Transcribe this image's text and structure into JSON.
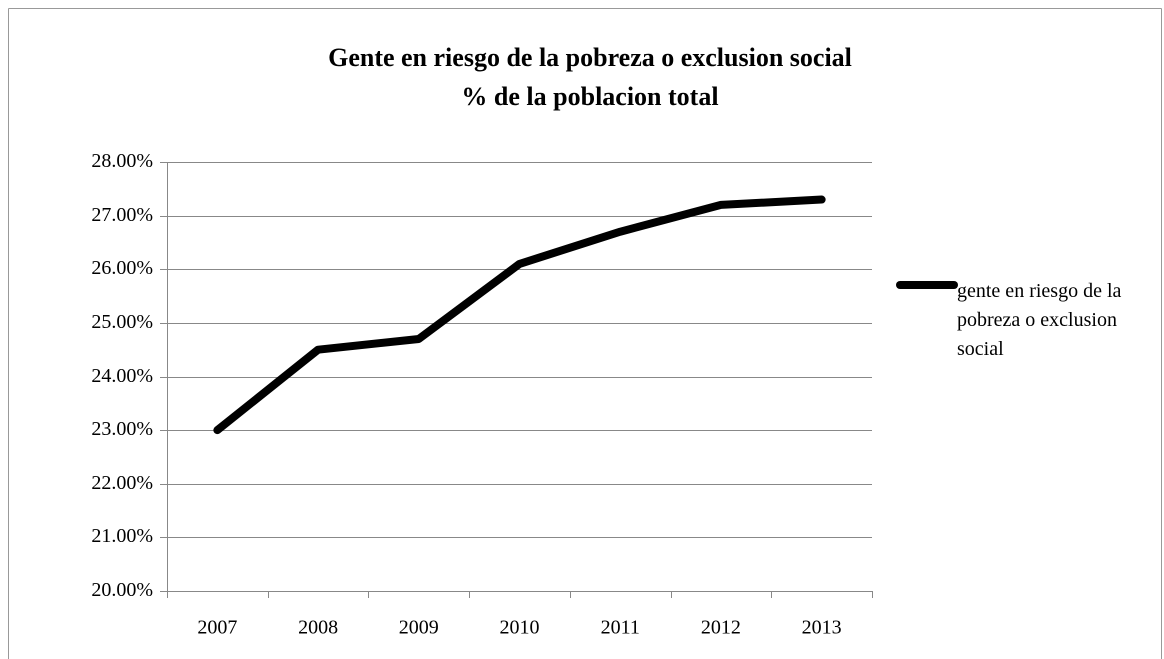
{
  "chart_data": {
    "type": "line",
    "title": "Gente en riesgo de la pobreza o exclusion social",
    "subtitle": "% de la poblacion total",
    "categories": [
      "2007",
      "2008",
      "2009",
      "2010",
      "2011",
      "2012",
      "2013"
    ],
    "series": [
      {
        "name": "gente en riesgo de la pobreza o exclusion social",
        "color": "#000000",
        "values": [
          23.0,
          24.5,
          24.7,
          26.1,
          26.7,
          27.2,
          27.3
        ]
      }
    ],
    "ylim": [
      20,
      28
    ],
    "yticks": [
      {
        "value": 20,
        "label": "20.00%"
      },
      {
        "value": 21,
        "label": "21.00%"
      },
      {
        "value": 22,
        "label": "22.00%"
      },
      {
        "value": 23,
        "label": "23.00%"
      },
      {
        "value": 24,
        "label": "24.00%"
      },
      {
        "value": 25,
        "label": "25.00%"
      },
      {
        "value": 26,
        "label": "26.00%"
      },
      {
        "value": 27,
        "label": "27.00%"
      },
      {
        "value": 28,
        "label": "28.00%"
      }
    ],
    "grid": true,
    "legend": "right"
  }
}
